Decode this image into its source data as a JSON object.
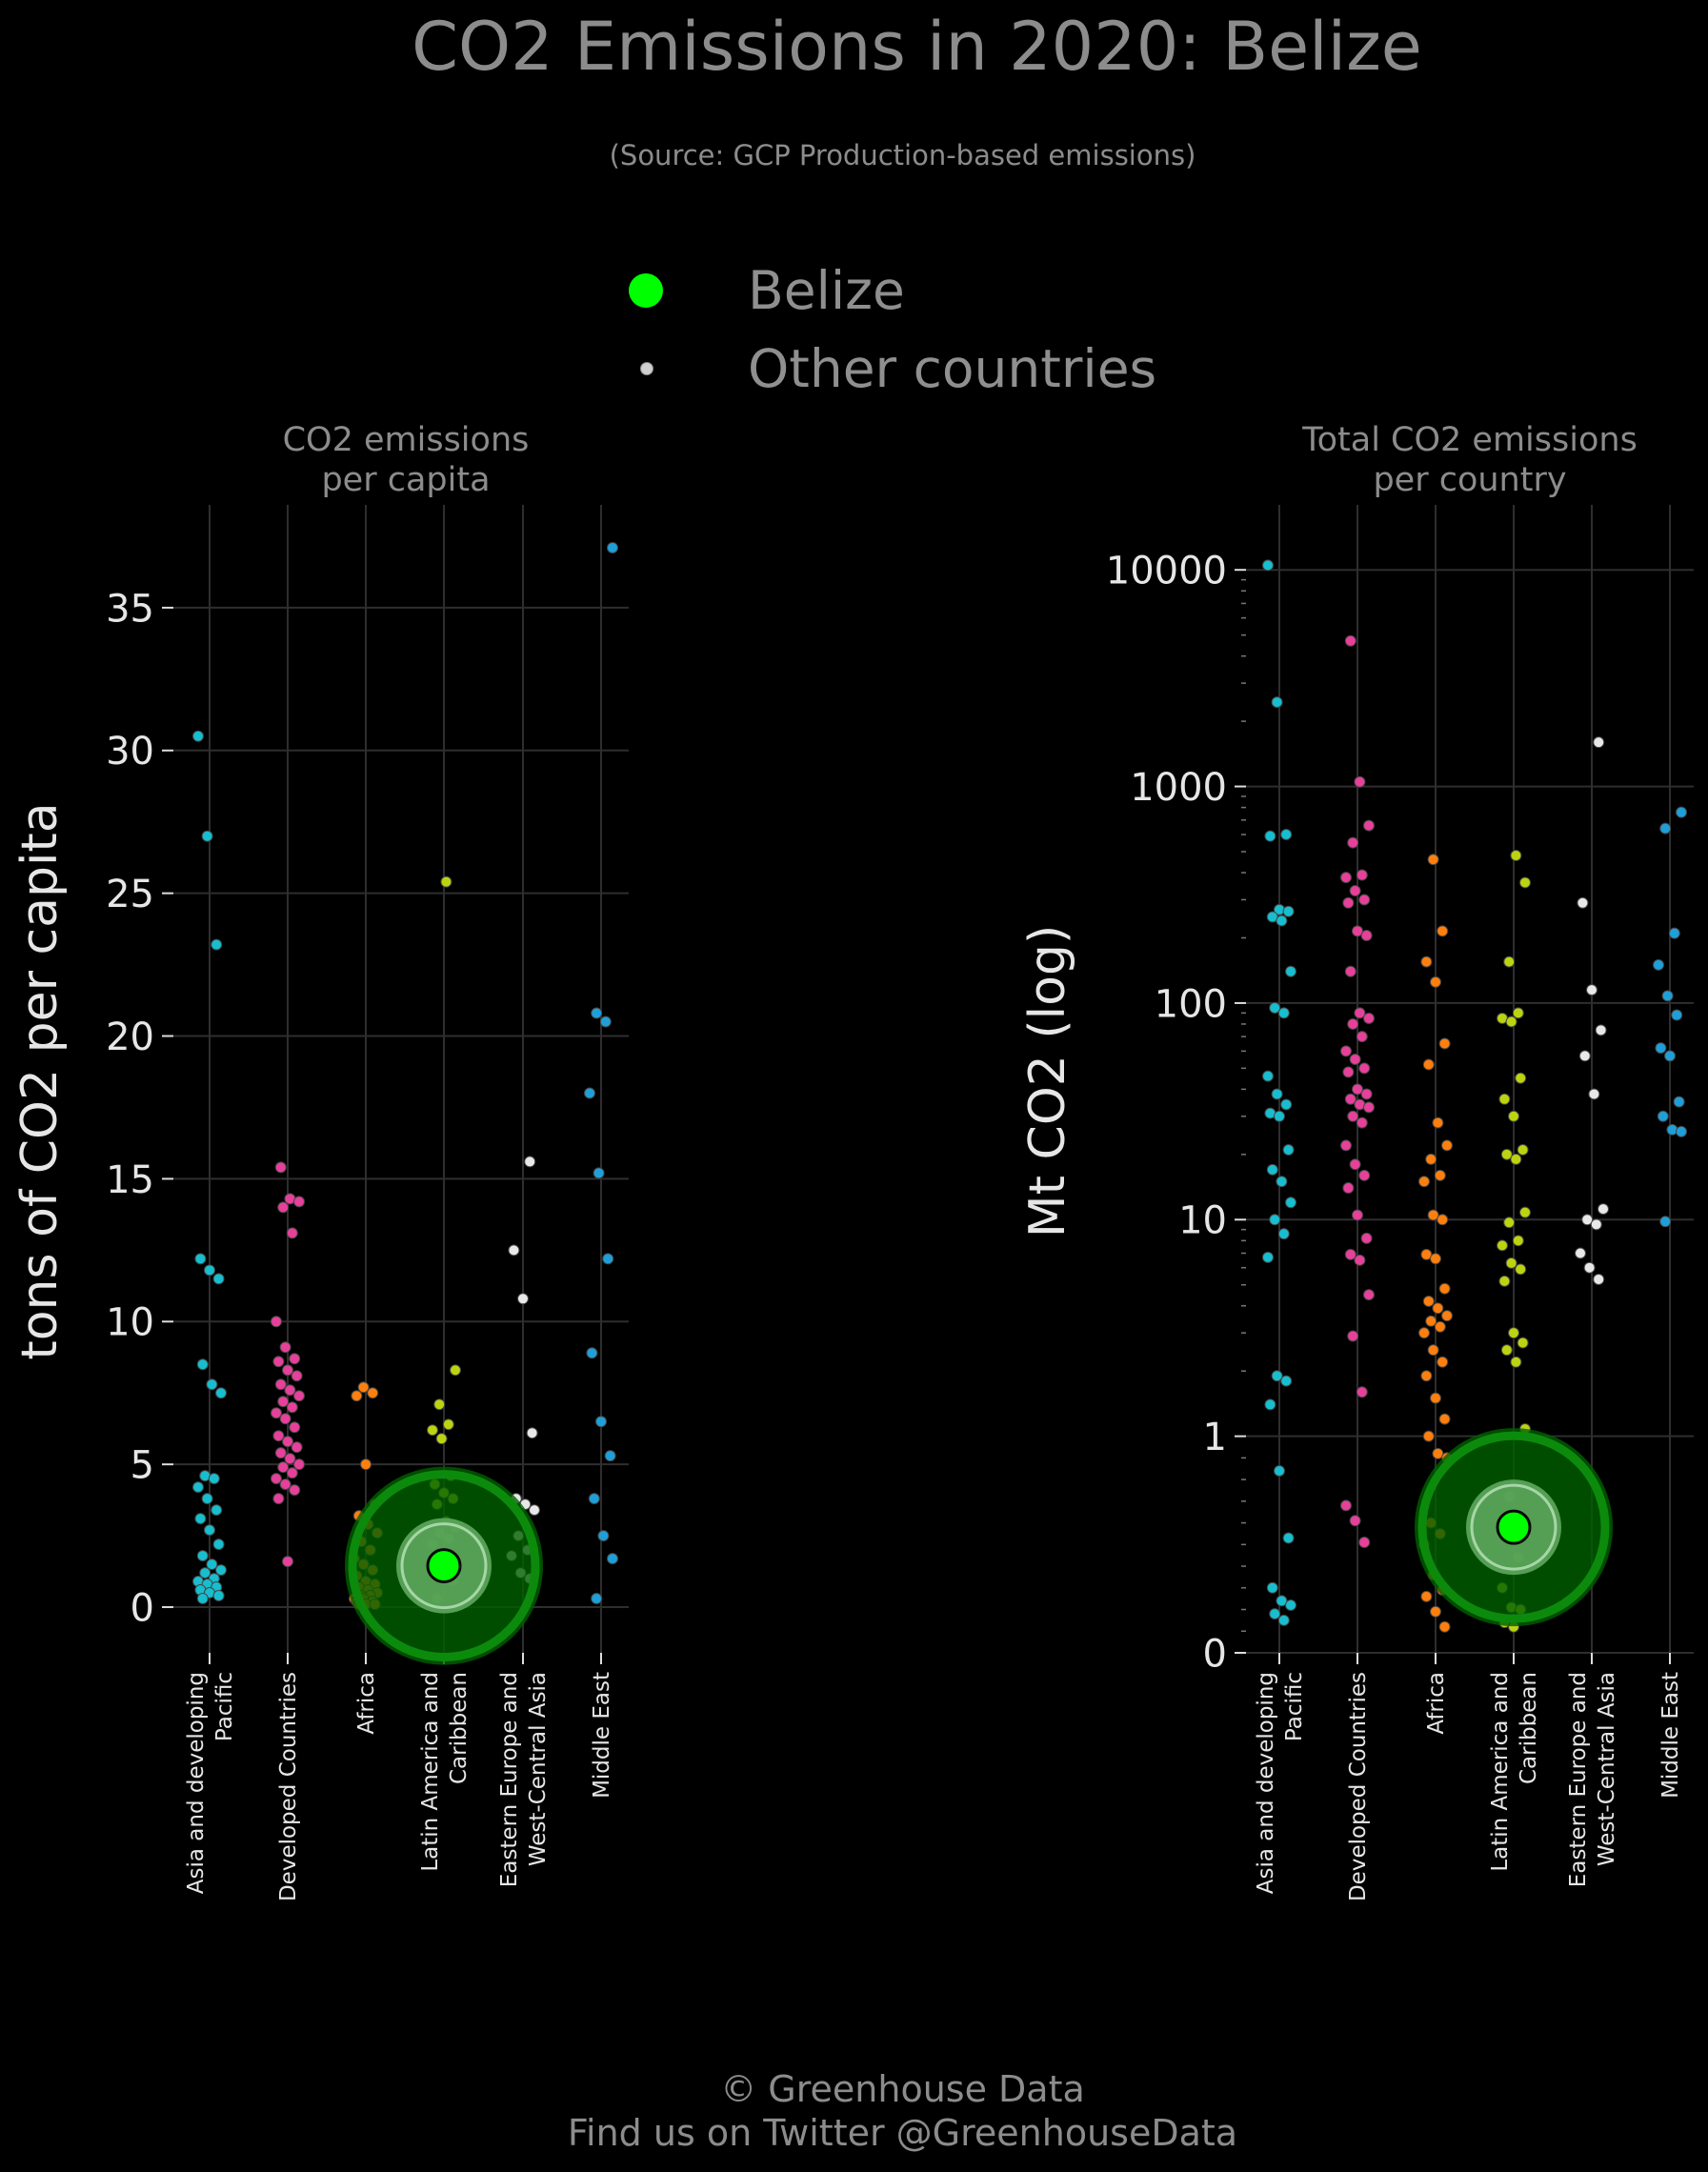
{
  "title": "CO2 Emissions in 2020: Belize",
  "subtitle": "(Source: GCP Production-based emissions)",
  "legend": {
    "highlight_label": "Belize",
    "other_label": "Other countries"
  },
  "footer": {
    "line1": "© Greenhouse Data",
    "line2": "Find us on Twitter @GreenhouseData"
  },
  "colors": {
    "background": "#000000",
    "highlight": "#00ff00",
    "regions": [
      "#17becf",
      "#e7409a",
      "#ff7f0e",
      "#bcd40f",
      "#e8e8e8",
      "#1f9fd9"
    ]
  },
  "chart_data": [
    {
      "type": "scatter",
      "title": "CO2 emissions\nper capita",
      "ylabel": "tons of CO2 per capita",
      "categories": [
        "Asia and developing\nPacific",
        "Developed Countries",
        "Africa",
        "Latin America and\nCaribbean",
        "Eastern Europe and\nWest-Central Asia",
        "Middle East"
      ],
      "yticks": [
        0,
        5,
        10,
        15,
        20,
        25,
        30,
        35
      ],
      "ylim": [
        -1.6,
        38.6
      ],
      "scale": "linear",
      "grid": true,
      "highlight": {
        "name": "Belize",
        "category": "Latin America and\nCaribbean",
        "value": 1.45
      },
      "series": [
        {
          "values": [
            30.5,
            27.0,
            23.2,
            12.2,
            11.8,
            11.5,
            8.5,
            7.8,
            7.5,
            4.6,
            4.5,
            4.2,
            3.8,
            3.4,
            3.1,
            2.7,
            2.2,
            1.8,
            1.5,
            1.3,
            1.2,
            1.0,
            0.9,
            0.8,
            0.7,
            0.6,
            0.5,
            0.4,
            0.3
          ]
        },
        {
          "values": [
            15.4,
            14.3,
            14.2,
            14.0,
            13.1,
            10.0,
            9.1,
            8.7,
            8.6,
            8.3,
            8.1,
            7.8,
            7.6,
            7.4,
            7.2,
            7.0,
            6.8,
            6.6,
            6.3,
            6.0,
            5.8,
            5.6,
            5.4,
            5.2,
            5.0,
            4.9,
            4.7,
            4.5,
            4.3,
            4.1,
            3.8,
            1.6
          ]
        },
        {
          "values": [
            7.7,
            7.5,
            7.4,
            5.0,
            3.6,
            3.2,
            2.9,
            2.6,
            2.3,
            2.0,
            1.7,
            1.5,
            1.3,
            1.1,
            0.9,
            0.8,
            0.7,
            0.6,
            0.5,
            0.4,
            0.4,
            0.3,
            0.3,
            0.2,
            0.2,
            0.1,
            0.1,
            0.1
          ]
        },
        {
          "values": [
            25.4,
            8.3,
            7.1,
            6.4,
            6.2,
            5.9,
            4.6,
            4.3,
            4.0,
            3.8,
            3.6,
            3.0,
            2.8,
            2.6,
            2.4,
            2.2,
            1.9,
            1.7,
            1.5,
            1.2,
            0.9,
            0.3
          ]
        },
        {
          "values": [
            15.6,
            12.5,
            10.8,
            6.1,
            3.8,
            3.6,
            3.4,
            2.5,
            2.0,
            1.8,
            1.2,
            1.0
          ]
        },
        {
          "values": [
            37.1,
            20.8,
            20.5,
            18.0,
            15.2,
            12.2,
            8.9,
            6.5,
            5.3,
            3.8,
            2.5,
            1.7,
            0.3
          ]
        }
      ]
    },
    {
      "type": "scatter",
      "title": "Total CO2 emissions\nper country",
      "ylabel": "Mt CO2 (log)",
      "categories": [
        "Asia and developing\nPacific",
        "Developed Countries",
        "Africa",
        "Latin America and\nCaribbean",
        "Eastern Europe and\nWest-Central Asia",
        "Middle East"
      ],
      "yticks": [
        0,
        1,
        10,
        100,
        1000,
        10000
      ],
      "scale": "log",
      "grid": true,
      "highlight": {
        "name": "Belize",
        "category": "Latin America and\nCaribbean",
        "value": 0.58
      },
      "series": [
        {
          "values": [
            10500,
            2450,
            600,
            590,
            270,
            265,
            250,
            240,
            140,
            95,
            90,
            46,
            38,
            34,
            31,
            30,
            21,
            17,
            15,
            12,
            10,
            8.6,
            6.7,
            1.9,
            1.8,
            1.4,
            0.84,
            0.53,
            0.3,
            0.24,
            0.22,
            0.18,
            0.15
          ]
        },
        {
          "values": [
            4700,
            1050,
            660,
            550,
            390,
            380,
            330,
            300,
            290,
            215,
            205,
            140,
            90,
            85,
            80,
            70,
            60,
            55,
            50,
            48,
            40,
            38,
            36,
            34,
            33,
            30,
            28,
            22,
            18,
            16,
            14,
            10.5,
            8.2,
            6.9,
            6.5,
            4.5,
            2.9,
            1.6,
            0.68,
            0.61,
            0.51
          ]
        },
        {
          "values": [
            460,
            215,
            155,
            125,
            65,
            52,
            28,
            22,
            19,
            16,
            15,
            10.5,
            10,
            6.9,
            6.6,
            4.8,
            4.2,
            3.9,
            3.6,
            3.4,
            3.2,
            3.0,
            2.5,
            2.2,
            1.9,
            1.5,
            1.2,
            1.0,
            0.92,
            0.9,
            0.6,
            0.55,
            0.5,
            0.36,
            0.29,
            0.26,
            0.19,
            0.12
          ]
        },
        {
          "values": [
            480,
            360,
            155,
            90,
            85,
            82,
            45,
            36,
            30,
            21,
            20,
            19,
            10.8,
            9.7,
            8.0,
            7.6,
            6.3,
            5.9,
            5.2,
            3.0,
            2.7,
            2.5,
            2.2,
            1.08,
            0.72,
            0.44,
            0.3,
            0.21,
            0.2,
            0.14,
            0.12
          ]
        },
        {
          "values": [
            1600,
            290,
            115,
            75,
            57,
            38,
            11.2,
            10.0,
            9.5,
            7.0,
            6.0,
            5.3
          ]
        },
        {
          "values": [
            760,
            640,
            210,
            150,
            108,
            88,
            62,
            57,
            35,
            30,
            26,
            25.5,
            9.8
          ]
        }
      ]
    }
  ]
}
